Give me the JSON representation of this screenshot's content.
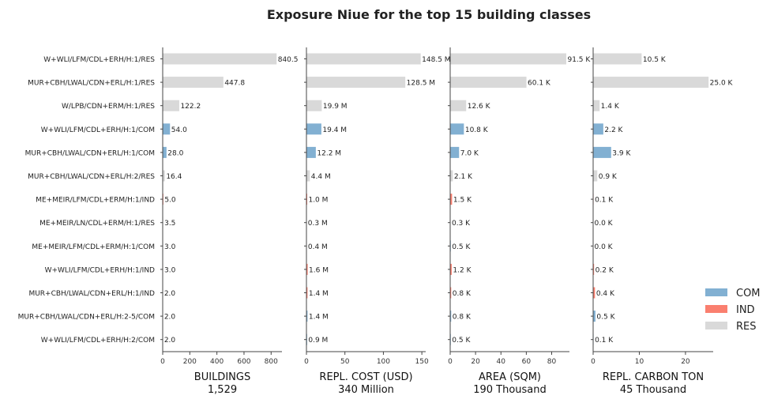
{
  "chart_data": {
    "type": "bar",
    "orientation": "horizontal",
    "title": "Exposure Niue for the top 15 building classes",
    "categories": [
      "W+WLI/LFM/CDL+ERH/H:1/RES",
      "MUR+CBH/LWAL/CDN+ERL/H:1/RES",
      "W/LPB/CDN+ERM/H:1/RES",
      "W+WLI/LFM/CDL+ERH/H:1/COM",
      "MUR+CBH/LWAL/CDN+ERL/H:1/COM",
      "MUR+CBH/LWAL/CDN+ERL/H:2/RES",
      "ME+MEIR/LFM/CDL+ERM/H:1/IND",
      "ME+MEIR/LN/CDL+ERM/H:1/RES",
      "ME+MEIR/LFM/CDL+ERM/H:1/COM",
      "W+WLI/LFM/CDL+ERH/H:1/IND",
      "MUR+CBH/LWAL/CDN+ERL/H:1/IND",
      "MUR+CBH/LWAL/CDN+ERL/H:2-5/COM",
      "W+WLI/LFM/CDL+ERH/H:2/COM"
    ],
    "occupancy": [
      "RES",
      "RES",
      "RES",
      "COM",
      "COM",
      "RES",
      "IND",
      "RES",
      "COM",
      "IND",
      "IND",
      "COM",
      "COM"
    ],
    "legend": {
      "placement": "right",
      "entries": [
        {
          "name": "COM",
          "color": "#82b0d2"
        },
        {
          "name": "IND",
          "color": "#fa7f6f"
        },
        {
          "name": "RES",
          "color": "#d9d9d9"
        }
      ]
    },
    "panels": [
      {
        "xlabel": "BUILDINGS",
        "total": "1,529",
        "xlim": [
          0,
          880
        ],
        "ticks": [
          0,
          200,
          400,
          600,
          800
        ],
        "tick_labels": [
          "0",
          "200",
          "400",
          "600",
          "800"
        ],
        "values": [
          840.5,
          447.8,
          122.2,
          54.0,
          28.0,
          16.4,
          5.0,
          3.5,
          3.0,
          3.0,
          2.0,
          2.0,
          2.0
        ],
        "labels": [
          "840.5",
          "447.8",
          "122.2",
          "54.0",
          "28.0",
          "16.4",
          "5.0",
          "3.5",
          "3.0",
          "3.0",
          "2.0",
          "2.0",
          "2.0"
        ]
      },
      {
        "xlabel": "REPL. COST (USD)",
        "total": "340 Million",
        "xlim": [
          0,
          155
        ],
        "ticks": [
          0,
          50,
          100,
          150
        ],
        "tick_labels": [
          "0",
          "50",
          "100",
          "150"
        ],
        "values": [
          148.5,
          128.5,
          19.9,
          19.4,
          12.2,
          4.4,
          1.0,
          0.3,
          0.4,
          1.6,
          1.4,
          1.4,
          0.9
        ],
        "labels": [
          "148.5 M",
          "128.5 M",
          "19.9 M",
          "19.4 M",
          "12.2 M",
          "4.4 M",
          "1.0 M",
          "0.3 M",
          "0.4 M",
          "1.6 M",
          "1.4 M",
          "1.4 M",
          "0.9 M"
        ]
      },
      {
        "xlabel": "AREA (SQM)",
        "total": "190 Thousand",
        "xlim": [
          0,
          94
        ],
        "ticks": [
          0,
          20,
          40,
          60,
          80
        ],
        "tick_labels": [
          "0",
          "20",
          "40",
          "60",
          "80"
        ],
        "values": [
          91.5,
          60.1,
          12.6,
          10.8,
          7.0,
          2.1,
          1.5,
          0.3,
          0.5,
          1.2,
          0.8,
          0.8,
          0.5
        ],
        "labels": [
          "91.5 K",
          "60.1 K",
          "12.6 K",
          "10.8 K",
          "7.0 K",
          "2.1 K",
          "1.5 K",
          "0.3 K",
          "0.5 K",
          "1.2 K",
          "0.8 K",
          "0.8 K",
          "0.5 K"
        ]
      },
      {
        "xlabel": "REPL. CARBON TON",
        "total": "45 Thousand",
        "xlim": [
          0,
          26
        ],
        "ticks": [
          0,
          10,
          20
        ],
        "tick_labels": [
          "0",
          "10",
          "20"
        ],
        "values": [
          10.5,
          25.0,
          1.4,
          2.2,
          3.9,
          0.9,
          0.1,
          0.0,
          0.0,
          0.2,
          0.4,
          0.5,
          0.1
        ],
        "labels": [
          "10.5 K",
          "25.0 K",
          "1.4 K",
          "2.2 K",
          "3.9 K",
          "0.9 K",
          "0.1 K",
          "0.0 K",
          "0.0 K",
          "0.2 K",
          "0.4 K",
          "0.5 K",
          "0.1 K"
        ]
      }
    ]
  }
}
